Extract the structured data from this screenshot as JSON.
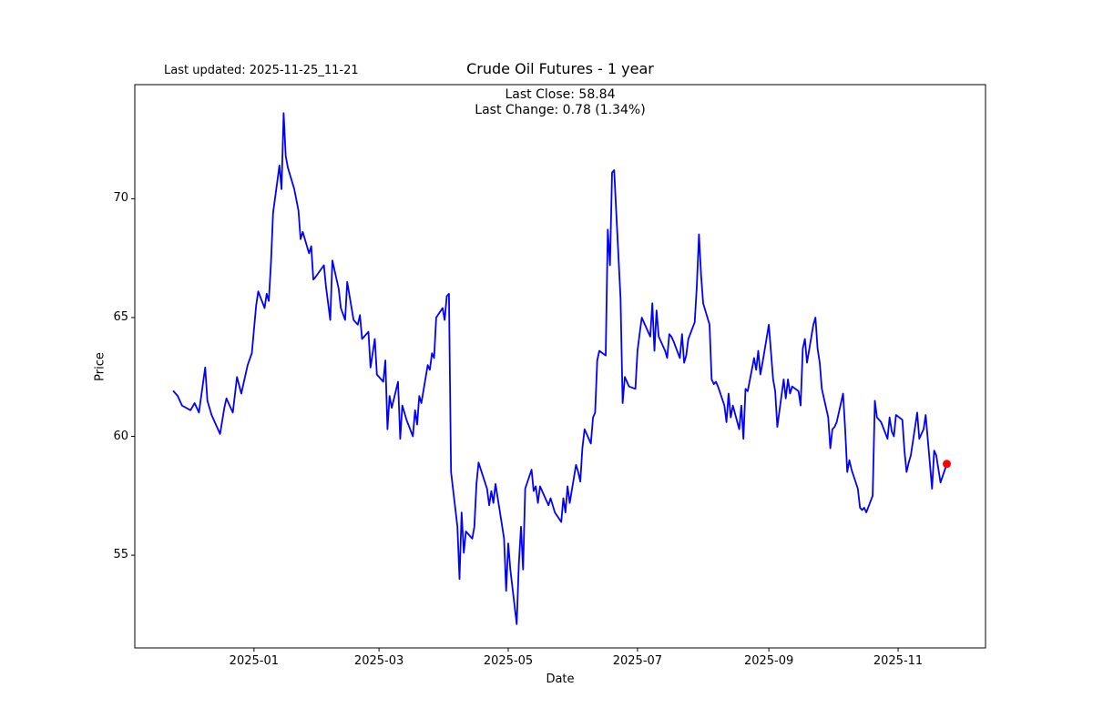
{
  "figure": {
    "last_updated": "Last updated: 2025-11-25_11-21",
    "title": "Crude Oil Futures - 1 year",
    "annotation_line1": "Last Close: 58.84",
    "annotation_line2": "Last Change: 0.78 (1.34%)",
    "xlabel": "Date",
    "ylabel": "Price"
  },
  "chart_data": {
    "type": "line",
    "title": "Crude Oil Futures - 1 year",
    "xlabel": "Date",
    "ylabel": "Price",
    "legend": "none",
    "grid": false,
    "line_color": "#0000ff",
    "marker_color": "#ff0000",
    "last_close": 58.84,
    "last_change": 0.78,
    "last_change_pct": 1.34,
    "ylim": [
      51.1,
      74.8
    ],
    "x_margin_days": 18.25,
    "y_ticks": [
      55,
      60,
      65,
      70
    ],
    "x_ticks": [
      {
        "date": "2025-01-01",
        "label": "2025-01"
      },
      {
        "date": "2025-03-01",
        "label": "2025-03"
      },
      {
        "date": "2025-05-01",
        "label": "2025-05"
      },
      {
        "date": "2025-07-01",
        "label": "2025-07"
      },
      {
        "date": "2025-09-01",
        "label": "2025-09"
      },
      {
        "date": "2025-11-01",
        "label": "2025-11"
      }
    ],
    "dates": [
      "2024-11-24",
      "2024-11-26",
      "2024-11-28",
      "2024-12-02",
      "2024-12-04",
      "2024-12-06",
      "2024-12-09",
      "2024-12-10",
      "2024-12-12",
      "2024-12-16",
      "2024-12-18",
      "2024-12-19",
      "2024-12-22",
      "2024-12-24",
      "2024-12-26",
      "2024-12-29",
      "2024-12-31",
      "2025-01-02",
      "2025-01-03",
      "2025-01-06",
      "2025-01-07",
      "2025-01-08",
      "2025-01-09",
      "2025-01-10",
      "2025-01-13",
      "2025-01-14",
      "2025-01-15",
      "2025-01-16",
      "2025-01-17",
      "2025-01-20",
      "2025-01-22",
      "2025-01-23",
      "2025-01-24",
      "2025-01-27",
      "2025-01-28",
      "2025-01-29",
      "2025-01-30",
      "2025-02-03",
      "2025-02-04",
      "2025-02-06",
      "2025-02-07",
      "2025-02-10",
      "2025-02-11",
      "2025-02-13",
      "2025-02-14",
      "2025-02-17",
      "2025-02-19",
      "2025-02-20",
      "2025-02-21",
      "2025-02-24",
      "2025-02-25",
      "2025-02-27",
      "2025-02-28",
      "2025-03-03",
      "2025-03-04",
      "2025-03-05",
      "2025-03-06",
      "2025-03-07",
      "2025-03-10",
      "2025-03-11",
      "2025-03-12",
      "2025-03-14",
      "2025-03-17",
      "2025-03-18",
      "2025-03-19",
      "2025-03-20",
      "2025-03-21",
      "2025-03-24",
      "2025-03-25",
      "2025-03-26",
      "2025-03-27",
      "2025-03-28",
      "2025-03-31",
      "2025-04-01",
      "2025-04-02",
      "2025-04-03",
      "2025-04-04",
      "2025-04-07",
      "2025-04-08",
      "2025-04-09",
      "2025-04-10",
      "2025-04-11",
      "2025-04-14",
      "2025-04-15",
      "2025-04-16",
      "2025-04-17",
      "2025-04-21",
      "2025-04-22",
      "2025-04-23",
      "2025-04-24",
      "2025-04-25",
      "2025-04-28",
      "2025-04-29",
      "2025-04-30",
      "2025-05-01",
      "2025-05-02",
      "2025-05-05",
      "2025-05-06",
      "2025-05-07",
      "2025-05-08",
      "2025-05-09",
      "2025-05-12",
      "2025-05-13",
      "2025-05-14",
      "2025-05-15",
      "2025-05-16",
      "2025-05-19",
      "2025-05-20",
      "2025-05-21",
      "2025-05-23",
      "2025-05-26",
      "2025-05-27",
      "2025-05-28",
      "2025-05-29",
      "2025-05-30",
      "2025-06-02",
      "2025-06-03",
      "2025-06-04",
      "2025-06-05",
      "2025-06-06",
      "2025-06-09",
      "2025-06-10",
      "2025-06-11",
      "2025-06-12",
      "2025-06-13",
      "2025-06-16",
      "2025-06-17",
      "2025-06-18",
      "2025-06-19",
      "2025-06-20",
      "2025-06-23",
      "2025-06-24",
      "2025-06-25",
      "2025-06-26",
      "2025-06-27",
      "2025-06-30",
      "2025-07-01",
      "2025-07-02",
      "2025-07-03",
      "2025-07-07",
      "2025-07-08",
      "2025-07-09",
      "2025-07-10",
      "2025-07-11",
      "2025-07-14",
      "2025-07-15",
      "2025-07-16",
      "2025-07-17",
      "2025-07-18",
      "2025-07-21",
      "2025-07-22",
      "2025-07-23",
      "2025-07-24",
      "2025-07-25",
      "2025-07-28",
      "2025-07-29",
      "2025-07-30",
      "2025-07-31",
      "2025-08-01",
      "2025-08-04",
      "2025-08-05",
      "2025-08-06",
      "2025-08-07",
      "2025-08-08",
      "2025-08-11",
      "2025-08-12",
      "2025-08-13",
      "2025-08-14",
      "2025-08-15",
      "2025-08-18",
      "2025-08-19",
      "2025-08-20",
      "2025-08-21",
      "2025-08-22",
      "2025-08-25",
      "2025-08-26",
      "2025-08-27",
      "2025-08-28",
      "2025-08-29",
      "2025-09-01",
      "2025-09-03",
      "2025-09-04",
      "2025-09-05",
      "2025-09-08",
      "2025-09-09",
      "2025-09-10",
      "2025-09-11",
      "2025-09-12",
      "2025-09-15",
      "2025-09-16",
      "2025-09-17",
      "2025-09-18",
      "2025-09-19",
      "2025-09-22",
      "2025-09-23",
      "2025-09-24",
      "2025-09-25",
      "2025-09-26",
      "2025-09-29",
      "2025-09-30",
      "2025-10-01",
      "2025-10-02",
      "2025-10-03",
      "2025-10-06",
      "2025-10-07",
      "2025-10-08",
      "2025-10-09",
      "2025-10-10",
      "2025-10-13",
      "2025-10-14",
      "2025-10-15",
      "2025-10-16",
      "2025-10-17",
      "2025-10-20",
      "2025-10-21",
      "2025-10-22",
      "2025-10-24",
      "2025-10-27",
      "2025-10-28",
      "2025-10-29",
      "2025-10-30",
      "2025-10-31",
      "2025-11-03",
      "2025-11-04",
      "2025-11-05",
      "2025-11-06",
      "2025-11-07",
      "2025-11-10",
      "2025-11-11",
      "2025-11-12",
      "2025-11-13",
      "2025-11-14",
      "2025-11-17",
      "2025-11-18",
      "2025-11-19",
      "2025-11-21",
      "2025-11-24"
    ],
    "values": [
      61.9,
      61.7,
      61.3,
      61.1,
      61.4,
      61.0,
      62.9,
      61.5,
      60.9,
      60.1,
      61.2,
      61.6,
      61.0,
      62.5,
      61.8,
      63.0,
      63.5,
      65.5,
      66.1,
      65.4,
      66.0,
      65.7,
      67.3,
      69.4,
      71.4,
      70.4,
      73.6,
      71.8,
      71.3,
      70.4,
      69.5,
      68.3,
      68.6,
      67.7,
      68.0,
      66.6,
      66.7,
      67.2,
      66.3,
      64.9,
      67.4,
      66.2,
      65.4,
      64.9,
      66.5,
      64.9,
      64.7,
      65.1,
      64.1,
      64.4,
      62.9,
      64.1,
      62.6,
      62.3,
      63.2,
      60.3,
      61.7,
      61.2,
      62.3,
      59.9,
      61.3,
      60.7,
      60.0,
      61.1,
      60.5,
      61.7,
      61.4,
      63.0,
      62.8,
      63.5,
      63.3,
      65.0,
      65.4,
      64.9,
      65.9,
      66.0,
      58.5,
      56.2,
      54.0,
      56.8,
      55.1,
      56.0,
      55.7,
      56.2,
      58.0,
      58.9,
      57.8,
      57.1,
      57.7,
      57.2,
      58.0,
      56.3,
      55.7,
      53.5,
      55.5,
      54.4,
      52.1,
      54.6,
      56.2,
      54.4,
      57.8,
      58.6,
      57.7,
      57.9,
      57.2,
      57.9,
      57.3,
      57.1,
      57.4,
      56.8,
      56.4,
      57.4,
      56.8,
      57.9,
      57.2,
      58.8,
      58.5,
      58.1,
      59.5,
      60.3,
      59.7,
      60.8,
      61.0,
      63.2,
      63.6,
      63.4,
      68.7,
      67.2,
      71.1,
      71.2,
      65.8,
      61.4,
      62.5,
      62.3,
      62.1,
      62.0,
      63.6,
      64.3,
      65.0,
      64.2,
      65.6,
      63.6,
      65.3,
      64.2,
      63.6,
      63.3,
      64.3,
      64.2,
      64.0,
      63.3,
      64.3,
      63.1,
      63.4,
      64.1,
      64.8,
      66.3,
      68.5,
      66.8,
      65.6,
      64.7,
      62.4,
      62.2,
      62.3,
      62.1,
      61.3,
      60.6,
      61.8,
      60.8,
      61.3,
      60.3,
      61.3,
      59.9,
      62.0,
      61.9,
      63.3,
      62.8,
      63.6,
      62.6,
      63.1,
      64.7,
      62.4,
      61.9,
      60.4,
      62.4,
      61.6,
      62.4,
      61.8,
      62.1,
      61.9,
      61.3,
      63.7,
      64.1,
      63.1,
      64.7,
      65.0,
      63.7,
      63.1,
      62.0,
      60.8,
      59.5,
      60.3,
      60.4,
      60.6,
      61.8,
      60.3,
      58.5,
      59.0,
      58.6,
      57.8,
      57.0,
      56.9,
      57.0,
      56.8,
      57.5,
      61.5,
      60.8,
      60.6,
      59.9,
      60.8,
      60.2,
      60.0,
      60.9,
      60.7,
      59.4,
      58.5,
      58.9,
      59.2,
      61.0,
      59.9,
      60.1,
      60.3,
      60.9,
      57.8,
      59.4,
      59.2,
      58.06,
      58.84
    ]
  }
}
